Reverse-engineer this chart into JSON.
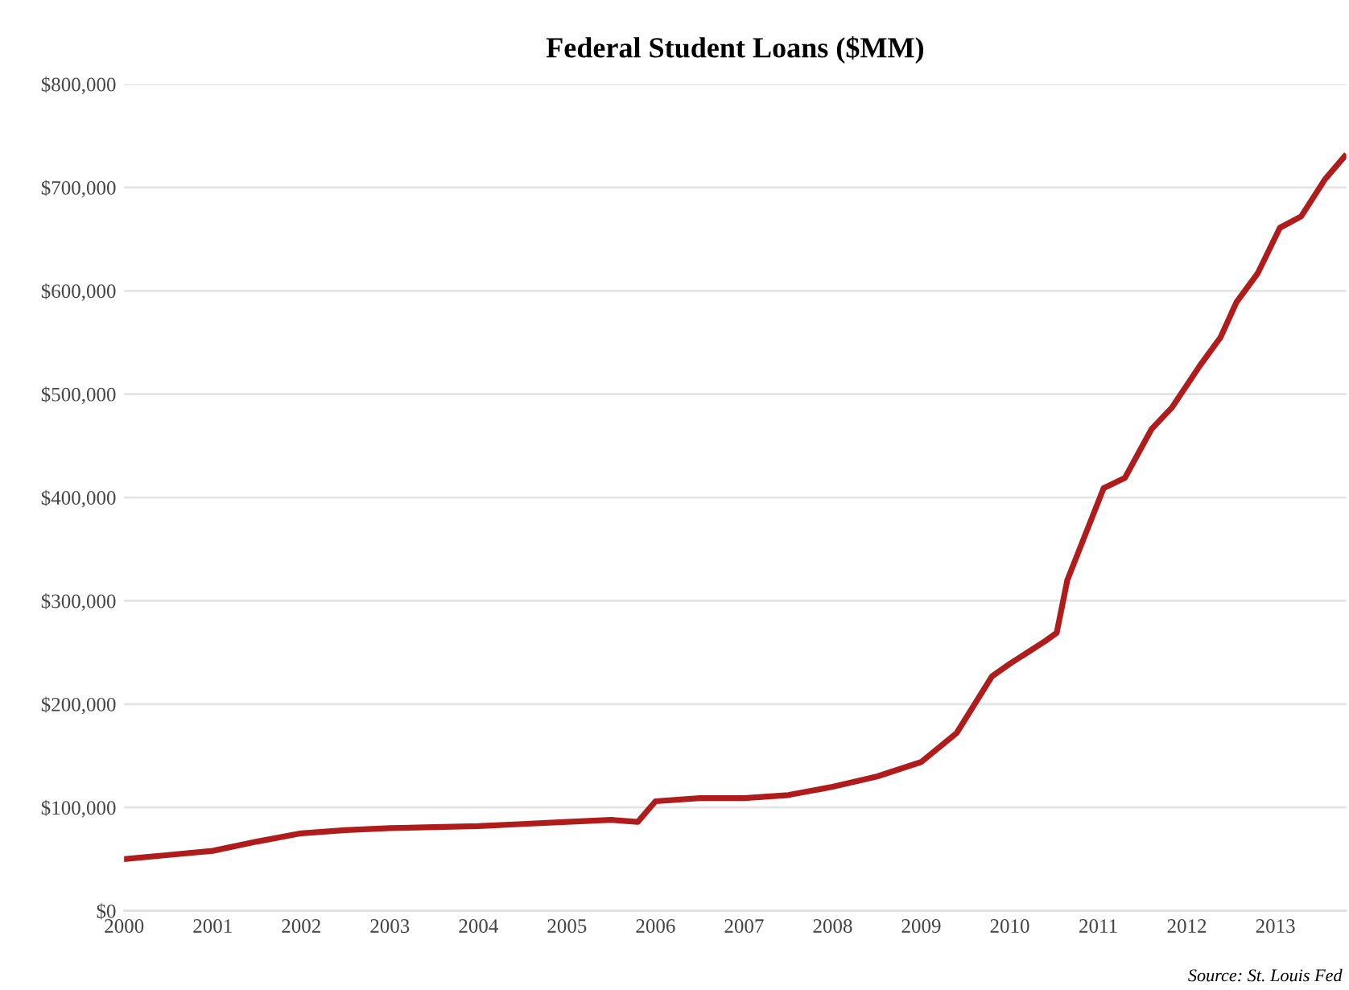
{
  "chart_data": {
    "type": "line",
    "title": "Federal Student Loans ($MM)",
    "annotations": [
      "Source: St. Louis Fed"
    ],
    "x": [
      2000.0,
      2000.5,
      2001.0,
      2001.5,
      2002.0,
      2002.5,
      2003.0,
      2003.5,
      2004.0,
      2004.5,
      2005.0,
      2005.5,
      2005.8,
      2006.0,
      2006.5,
      2007.0,
      2007.5,
      2008.0,
      2008.5,
      2009.0,
      2009.4,
      2009.8,
      2010.0,
      2010.4,
      2010.53,
      2010.65,
      2011.06,
      2011.3,
      2011.6,
      2011.83,
      2012.15,
      2012.38,
      2012.56,
      2012.8,
      2013.05,
      2013.29,
      2013.56,
      2013.78
    ],
    "series": [
      {
        "color": "#b01c1c",
        "values": [
          50000,
          54000,
          58000,
          67000,
          75000,
          78000,
          80000,
          81000,
          82000,
          84000,
          86000,
          88000,
          86000,
          106000,
          109000,
          109000,
          112000,
          120000,
          130000,
          144000,
          172000,
          227000,
          239000,
          261000,
          269000,
          320000,
          409000,
          419000,
          466000,
          487000,
          528000,
          555000,
          589000,
          617000,
          661000,
          672000,
          708000,
          730000
        ]
      }
    ],
    "xlim": [
      2000,
      2013.8
    ],
    "xticks": [
      2000,
      2001,
      2002,
      2003,
      2004,
      2005,
      2006,
      2007,
      2008,
      2009,
      2010,
      2011,
      2012,
      2013
    ],
    "ylim": [
      0,
      800000
    ],
    "yticks": [
      {
        "value": 0,
        "label": "$0"
      },
      {
        "value": 100000,
        "label": "$100,000"
      },
      {
        "value": 200000,
        "label": "$200,000"
      },
      {
        "value": 300000,
        "label": "$300,000"
      },
      {
        "value": 400000,
        "label": "$400,000"
      },
      {
        "value": 500000,
        "label": "$500,000"
      },
      {
        "value": 600000,
        "label": "$600,000"
      },
      {
        "value": 700000,
        "label": "$700,000"
      },
      {
        "value": 800000,
        "label": "$800,000"
      }
    ],
    "grid": "y",
    "marker": "none",
    "line_style": "solid",
    "legend": false
  }
}
